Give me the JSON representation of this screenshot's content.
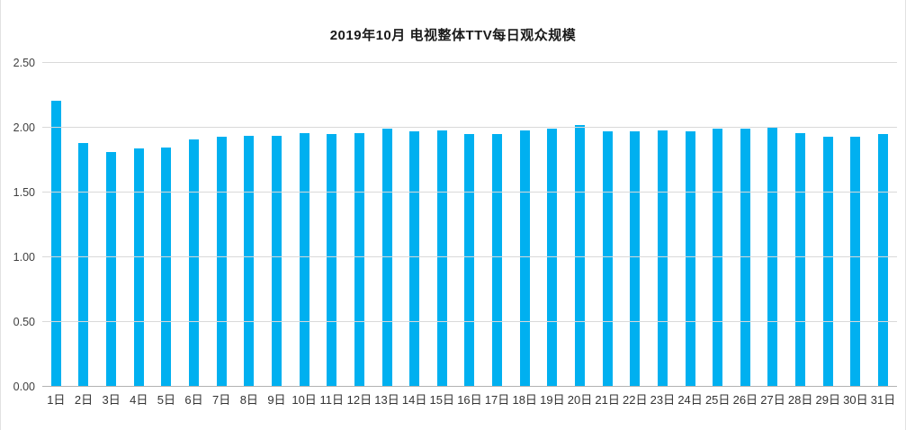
{
  "chart_data": {
    "type": "bar",
    "title": "2019年10月  电视整体TTV每日观众规模",
    "categories": [
      "1日",
      "2日",
      "3日",
      "4日",
      "5日",
      "6日",
      "7日",
      "8日",
      "9日",
      "10日",
      "11日",
      "12日",
      "13日",
      "14日",
      "15日",
      "16日",
      "17日",
      "18日",
      "19日",
      "20日",
      "21日",
      "22日",
      "23日",
      "24日",
      "25日",
      "26日",
      "27日",
      "28日",
      "29日",
      "30日",
      "31日"
    ],
    "values": [
      2.21,
      1.88,
      1.81,
      1.84,
      1.85,
      1.91,
      1.93,
      1.94,
      1.94,
      1.96,
      1.95,
      1.96,
      1.99,
      1.97,
      1.98,
      1.95,
      1.95,
      1.98,
      1.99,
      2.02,
      1.97,
      1.97,
      1.98,
      1.97,
      1.99,
      1.99,
      2.0,
      1.96,
      1.93,
      1.93,
      1.95
    ],
    "xlabel": "",
    "ylabel": "",
    "ylim": [
      0,
      2.5
    ],
    "yticks": [
      "0.00",
      "0.50",
      "1.00",
      "1.50",
      "2.00",
      "2.50"
    ],
    "grid": true,
    "legend": "none",
    "bar_color": "#00b0f0",
    "gridline_color": "#d9d9d9"
  }
}
